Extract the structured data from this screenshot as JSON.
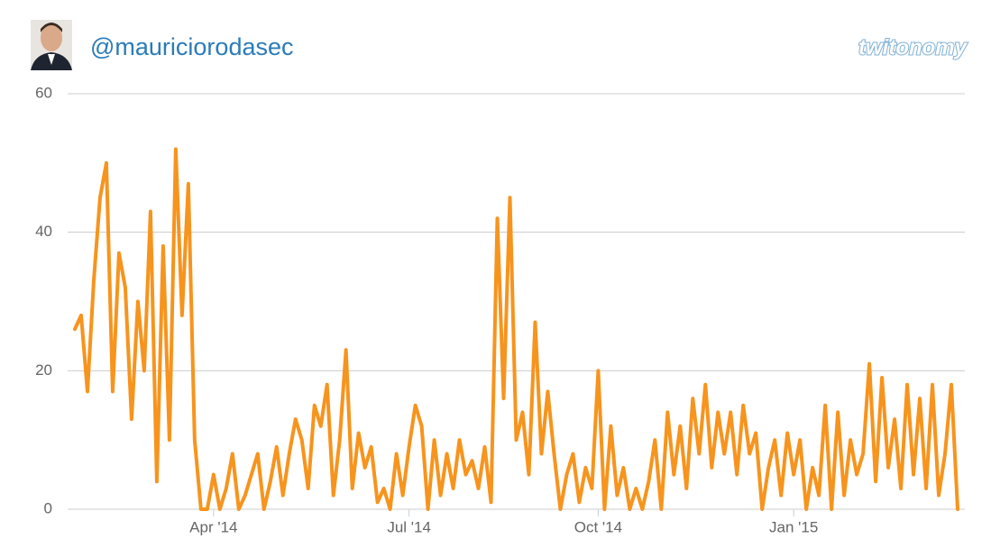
{
  "chart_data": {
    "type": "line",
    "title": "@mauriciorodasec",
    "logo": "twitonomy",
    "color": "#f7941d",
    "grid": true,
    "ylim": [
      0,
      60
    ],
    "yticks": [
      0,
      20,
      40,
      60
    ],
    "categories": [
      null,
      null,
      null,
      null,
      null,
      null,
      null,
      null,
      null,
      null,
      null,
      null,
      null,
      null,
      null,
      null,
      null,
      null,
      null,
      null,
      null,
      null,
      "Apr '14",
      null,
      null,
      null,
      null,
      null,
      null,
      null,
      null,
      null,
      null,
      null,
      null,
      null,
      null,
      null,
      null,
      null,
      null,
      null,
      null,
      null,
      null,
      null,
      null,
      null,
      null,
      null,
      null,
      null,
      null,
      "Jul '14",
      null,
      null,
      null,
      null,
      null,
      null,
      null,
      null,
      null,
      null,
      null,
      null,
      null,
      null,
      null,
      null,
      null,
      null,
      null,
      null,
      null,
      null,
      null,
      null,
      null,
      null,
      null,
      null,
      null,
      "Oct '14",
      null,
      null,
      null,
      null,
      null,
      null,
      null,
      null,
      null,
      null,
      null,
      null,
      null,
      null,
      null,
      null,
      null,
      null,
      null,
      null,
      null,
      null,
      null,
      null,
      null,
      null,
      null,
      null,
      null,
      null,
      "Jan '15",
      null,
      null,
      null,
      null,
      null,
      null,
      null,
      null,
      null,
      null,
      null,
      null,
      null,
      null,
      null,
      null,
      null,
      null,
      null,
      null,
      null,
      null,
      null,
      null,
      null,
      null
    ],
    "values": [
      26,
      28,
      17,
      33,
      45,
      50,
      17,
      37,
      32,
      13,
      30,
      20,
      43,
      4,
      38,
      10,
      52,
      28,
      47,
      10,
      0,
      0,
      5,
      0,
      3,
      8,
      0,
      2,
      5,
      8,
      0,
      4,
      9,
      2,
      8,
      13,
      10,
      3,
      15,
      12,
      18,
      2,
      10,
      23,
      3,
      11,
      6,
      9,
      1,
      3,
      0,
      8,
      2,
      9,
      15,
      12,
      0,
      10,
      2,
      8,
      3,
      10,
      5,
      7,
      3,
      9,
      1,
      42,
      16,
      45,
      10,
      14,
      5,
      27,
      8,
      17,
      8,
      0,
      5,
      8,
      1,
      6,
      3,
      20,
      0,
      12,
      2,
      6,
      0,
      3,
      0,
      4,
      10,
      0,
      14,
      5,
      12,
      3,
      16,
      8,
      18,
      6,
      14,
      8,
      14,
      5,
      15,
      8,
      11,
      0,
      6,
      10,
      2,
      11,
      5,
      10,
      0,
      6,
      2,
      15,
      0,
      14,
      2,
      10,
      5,
      8,
      21,
      4,
      19,
      6,
      13,
      3,
      18,
      5,
      16,
      3,
      18,
      2,
      8,
      18,
      0
    ]
  }
}
